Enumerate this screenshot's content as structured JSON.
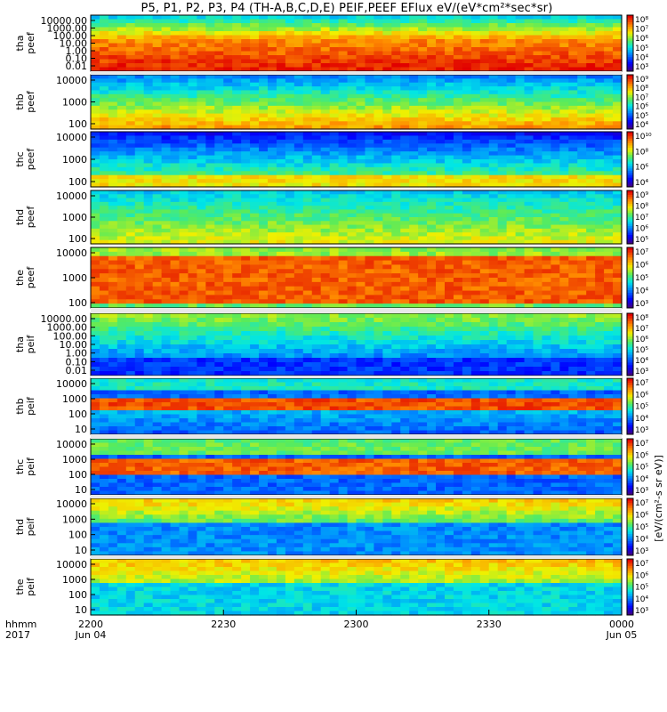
{
  "title": "P5, P1, P2, P3, P4 (TH-A,B,C,D,E) PEIF,PEEF EFlux eV/(eV*cm²*sec*sr)",
  "time_axis": {
    "corner_label_1": "hhmm",
    "corner_label_2": "2017",
    "ticks": [
      {
        "time": "2200",
        "date": "Jun 04"
      },
      {
        "time": "2230",
        "date": ""
      },
      {
        "time": "2300",
        "date": ""
      },
      {
        "time": "2330",
        "date": ""
      },
      {
        "time": "0000",
        "date": "Jun 05"
      }
    ]
  },
  "colorbar_unit_label": "[eV/(cm²-s sr eV)]",
  "chart_data": [
    {
      "type": "heatmap",
      "probe": "tha",
      "species": "peef",
      "ylabel": [
        "tha",
        "peef"
      ],
      "yscale": "log",
      "yticks": [
        "10000.00",
        "1000.00",
        "100.00",
        "10.00",
        "1.00",
        "0.10",
        "0.01"
      ],
      "cbar_ticks": [
        "10⁸",
        "10⁷",
        "10⁶",
        "10⁵",
        "10⁴",
        "10³"
      ]
    },
    {
      "type": "heatmap",
      "probe": "thb",
      "species": "peef",
      "ylabel": [
        "thb",
        "peef"
      ],
      "yscale": "log",
      "yticks": [
        "10000",
        "1000",
        "100"
      ],
      "cbar_ticks": [
        "10⁹",
        "10⁸",
        "10⁷",
        "10⁶",
        "10⁵",
        "10⁴"
      ]
    },
    {
      "type": "heatmap",
      "probe": "thc",
      "species": "peef",
      "ylabel": [
        "thc",
        "peef"
      ],
      "yscale": "log",
      "yticks": [
        "10000",
        "1000",
        "100"
      ],
      "cbar_ticks": [
        "10¹⁰",
        "10⁸",
        "10⁶",
        "10⁴"
      ]
    },
    {
      "type": "heatmap",
      "probe": "thd",
      "species": "peef",
      "ylabel": [
        "thd",
        "peef"
      ],
      "yscale": "log",
      "yticks": [
        "10000",
        "1000",
        "100"
      ],
      "cbar_ticks": [
        "10⁹",
        "10⁸",
        "10⁷",
        "10⁶",
        "10⁵"
      ]
    },
    {
      "type": "heatmap",
      "probe": "the",
      "species": "peef",
      "ylabel": [
        "the",
        "peef"
      ],
      "yscale": "log",
      "yticks": [
        "10000",
        "1000",
        "100"
      ],
      "cbar_ticks": [
        "10⁷",
        "10⁶",
        "10⁵",
        "10⁴",
        "10³"
      ]
    },
    {
      "type": "heatmap",
      "probe": "tha",
      "species": "peif",
      "ylabel": [
        "tha",
        "peif"
      ],
      "yscale": "log",
      "yticks": [
        "10000.00",
        "1000.00",
        "100.00",
        "10.00",
        "1.00",
        "0.10",
        "0.01"
      ],
      "cbar_ticks": [
        "10⁸",
        "10⁷",
        "10⁶",
        "10⁵",
        "10⁴",
        "10³"
      ]
    },
    {
      "type": "heatmap",
      "probe": "thb",
      "species": "peif",
      "ylabel": [
        "thb",
        "peif"
      ],
      "yscale": "log",
      "yticks": [
        "10000",
        "1000",
        "100",
        "10"
      ],
      "cbar_ticks": [
        "10⁷",
        "10⁶",
        "10⁵",
        "10⁴",
        "10³"
      ]
    },
    {
      "type": "heatmap",
      "probe": "thc",
      "species": "peif",
      "ylabel": [
        "thc",
        "peif"
      ],
      "yscale": "log",
      "yticks": [
        "10000",
        "1000",
        "100",
        "10"
      ],
      "cbar_ticks": [
        "10⁷",
        "10⁶",
        "10⁵",
        "10⁴",
        "10³"
      ]
    },
    {
      "type": "heatmap",
      "probe": "thd",
      "species": "peif",
      "ylabel": [
        "thd",
        "peif"
      ],
      "yscale": "log",
      "yticks": [
        "10000",
        "1000",
        "100",
        "10"
      ],
      "cbar_ticks": [
        "10⁷",
        "10⁶",
        "10⁵",
        "10⁴",
        "10³"
      ]
    },
    {
      "type": "heatmap",
      "probe": "the",
      "species": "peif",
      "ylabel": [
        "the",
        "peif"
      ],
      "yscale": "log",
      "yticks": [
        "10000",
        "1000",
        "100",
        "10"
      ],
      "cbar_ticks": [
        "10⁷",
        "10⁶",
        "10⁵",
        "10⁴",
        "10³"
      ]
    }
  ]
}
